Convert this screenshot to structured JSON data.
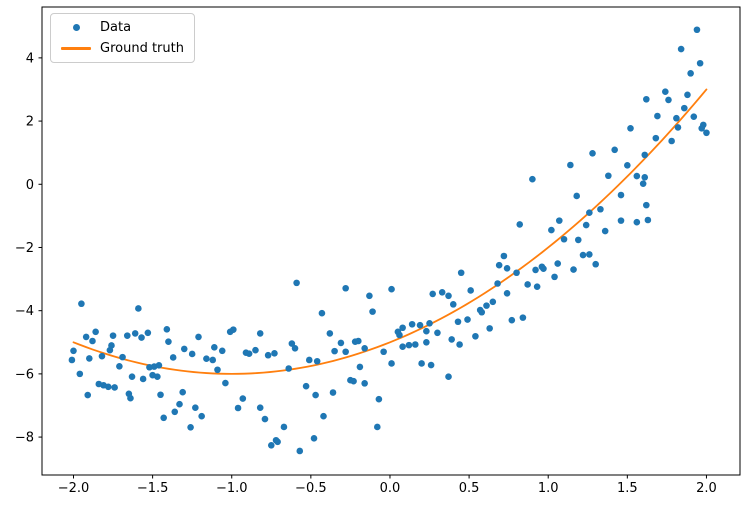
{
  "figure": {
    "background": "#ffffff",
    "spine_color": "#000000",
    "tick_color": "#000000"
  },
  "chart_data": {
    "type": "scatter",
    "title": "",
    "xlabel": "",
    "ylabel": "",
    "grid": false,
    "legend_position": "upper left",
    "xlim": [
      -2.199,
      2.212
    ],
    "ylim": [
      -9.2,
      5.61
    ],
    "x_ticks": [
      -2.0,
      -1.5,
      -1.0,
      -0.5,
      0.0,
      0.5,
      1.0,
      1.5,
      2.0
    ],
    "x_tick_labels": [
      "−2.0",
      "−1.5",
      "−1.0",
      "−0.5",
      "0.0",
      "0.5",
      "1.0",
      "1.5",
      "2.0"
    ],
    "y_ticks": [
      -8,
      -6,
      -4,
      -2,
      0,
      2,
      4
    ],
    "y_tick_labels": [
      "−8",
      "−6",
      "−4",
      "−2",
      "0",
      "2",
      "4"
    ],
    "series": [
      {
        "name": "Data",
        "type": "scatter",
        "color": "#1f77b4",
        "marker_radius": 3.3,
        "points": [
          [
            -1.95,
            -3.78
          ],
          [
            -1.59,
            -3.93
          ],
          [
            -1.92,
            -4.83
          ],
          [
            -1.86,
            -4.67
          ],
          [
            -1.88,
            -4.96
          ],
          [
            -1.75,
            -4.79
          ],
          [
            -1.66,
            -4.79
          ],
          [
            -1.61,
            -4.72
          ],
          [
            -1.57,
            -4.85
          ],
          [
            -1.53,
            -4.7
          ],
          [
            -1.41,
            -4.59
          ],
          [
            -1.4,
            -4.98
          ],
          [
            -2.0,
            -5.27
          ],
          [
            -2.01,
            -5.56
          ],
          [
            -1.9,
            -5.51
          ],
          [
            -1.82,
            -5.44
          ],
          [
            -1.77,
            -5.25
          ],
          [
            -1.76,
            -5.1
          ],
          [
            -1.69,
            -5.47
          ],
          [
            -1.71,
            -5.76
          ],
          [
            -1.63,
            -6.09
          ],
          [
            -1.52,
            -5.79
          ],
          [
            -1.49,
            -5.77
          ],
          [
            -1.46,
            -5.73
          ],
          [
            -1.56,
            -6.16
          ],
          [
            -1.5,
            -6.04
          ],
          [
            -1.47,
            -6.09
          ],
          [
            -1.96,
            -6.0
          ],
          [
            -1.91,
            -6.67
          ],
          [
            -1.84,
            -6.32
          ],
          [
            -1.81,
            -6.36
          ],
          [
            -1.78,
            -6.41
          ],
          [
            -1.74,
            -6.43
          ],
          [
            -1.65,
            -6.63
          ],
          [
            -1.64,
            -6.77
          ],
          [
            -1.45,
            -6.66
          ],
          [
            -1.37,
            -5.48
          ],
          [
            -1.3,
            -5.21
          ],
          [
            -1.25,
            -5.37
          ],
          [
            -1.21,
            -4.83
          ],
          [
            -1.31,
            -6.58
          ],
          [
            -1.33,
            -6.96
          ],
          [
            -1.36,
            -7.2
          ],
          [
            -1.43,
            -7.39
          ],
          [
            -1.23,
            -7.07
          ],
          [
            -1.19,
            -7.34
          ],
          [
            -1.26,
            -7.69
          ],
          [
            -1.16,
            -5.52
          ],
          [
            -1.11,
            -5.16
          ],
          [
            -1.12,
            -5.56
          ],
          [
            -1.09,
            -5.87
          ],
          [
            -1.06,
            -5.27
          ],
          [
            -1.04,
            -6.29
          ],
          [
            -1.01,
            -4.67
          ],
          [
            -0.99,
            -4.6
          ],
          [
            -0.96,
            -7.08
          ],
          [
            -0.59,
            -3.12
          ],
          [
            -0.28,
            -3.29
          ],
          [
            -0.13,
            -3.53
          ],
          [
            0.01,
            -3.32
          ],
          [
            -0.11,
            -4.03
          ],
          [
            -0.43,
            -4.08
          ],
          [
            -0.38,
            -4.72
          ],
          [
            -0.82,
            -4.72
          ],
          [
            -0.73,
            -5.35
          ],
          [
            -0.62,
            -5.04
          ],
          [
            -0.6,
            -5.19
          ],
          [
            -0.91,
            -5.33
          ],
          [
            -0.89,
            -5.36
          ],
          [
            -0.85,
            -5.25
          ],
          [
            -0.77,
            -5.41
          ],
          [
            -0.64,
            -5.83
          ],
          [
            -0.51,
            -5.56
          ],
          [
            -0.46,
            -5.6
          ],
          [
            -0.35,
            -5.28
          ],
          [
            -0.31,
            -5.02
          ],
          [
            -0.28,
            -5.3
          ],
          [
            -0.22,
            -4.98
          ],
          [
            -0.2,
            -4.96
          ],
          [
            -0.16,
            -5.19
          ],
          [
            -0.25,
            -6.2
          ],
          [
            -0.23,
            -6.23
          ],
          [
            -0.19,
            -5.78
          ],
          [
            -0.16,
            -6.3
          ],
          [
            -0.36,
            -6.59
          ],
          [
            -0.47,
            -6.67
          ],
          [
            -0.53,
            -6.39
          ],
          [
            -0.93,
            -6.78
          ],
          [
            -0.82,
            -7.07
          ],
          [
            -0.79,
            -7.43
          ],
          [
            -0.67,
            -7.68
          ],
          [
            -0.72,
            -8.1
          ],
          [
            -0.71,
            -8.15
          ],
          [
            -0.75,
            -8.26
          ],
          [
            -0.48,
            -8.04
          ],
          [
            -0.57,
            -8.44
          ],
          [
            -0.42,
            -7.34
          ],
          [
            -0.08,
            -7.68
          ],
          [
            -0.07,
            -6.8
          ],
          [
            0.12,
            -5.09
          ],
          [
            0.08,
            -5.14
          ],
          [
            -0.04,
            -5.3
          ],
          [
            0.05,
            -4.67
          ],
          [
            0.01,
            -5.67
          ],
          [
            0.37,
            -6.09
          ],
          [
            0.2,
            -5.67
          ],
          [
            0.26,
            -5.72
          ],
          [
            1.14,
            0.61
          ],
          [
            0.9,
            0.16
          ],
          [
            1.18,
            -0.37
          ],
          [
            0.82,
            -1.27
          ],
          [
            1.07,
            -1.15
          ],
          [
            1.02,
            -1.45
          ],
          [
            1.1,
            -1.74
          ],
          [
            1.19,
            -1.76
          ],
          [
            0.72,
            -2.27
          ],
          [
            0.69,
            -2.56
          ],
          [
            0.74,
            -2.66
          ],
          [
            0.8,
            -2.8
          ],
          [
            0.92,
            -2.71
          ],
          [
            0.96,
            -2.61
          ],
          [
            0.97,
            -2.67
          ],
          [
            1.04,
            -2.93
          ],
          [
            1.06,
            -2.51
          ],
          [
            1.16,
            -2.7
          ],
          [
            0.45,
            -2.8
          ],
          [
            0.68,
            -3.14
          ],
          [
            0.87,
            -3.17
          ],
          [
            0.93,
            -3.24
          ],
          [
            0.27,
            -3.47
          ],
          [
            0.33,
            -3.42
          ],
          [
            0.37,
            -3.53
          ],
          [
            0.4,
            -3.8
          ],
          [
            0.51,
            -3.36
          ],
          [
            0.57,
            -3.98
          ],
          [
            0.58,
            -4.05
          ],
          [
            0.61,
            -3.84
          ],
          [
            0.65,
            -3.72
          ],
          [
            0.74,
            -3.45
          ],
          [
            0.14,
            -4.43
          ],
          [
            0.19,
            -4.46
          ],
          [
            0.25,
            -4.4
          ],
          [
            0.23,
            -4.65
          ],
          [
            0.3,
            -4.7
          ],
          [
            0.08,
            -4.54
          ],
          [
            0.06,
            -4.77
          ],
          [
            0.16,
            -5.07
          ],
          [
            0.23,
            -5.0
          ],
          [
            0.39,
            -4.91
          ],
          [
            0.44,
            -5.07
          ],
          [
            0.54,
            -4.81
          ],
          [
            0.43,
            -4.35
          ],
          [
            0.49,
            -4.28
          ],
          [
            0.63,
            -4.56
          ],
          [
            0.77,
            -4.3
          ],
          [
            0.84,
            -4.22
          ],
          [
            1.94,
            4.89
          ],
          [
            1.84,
            4.28
          ],
          [
            1.96,
            3.83
          ],
          [
            1.9,
            3.51
          ],
          [
            1.88,
            2.83
          ],
          [
            1.74,
            2.93
          ],
          [
            1.76,
            2.67
          ],
          [
            1.62,
            2.69
          ],
          [
            1.86,
            2.41
          ],
          [
            1.81,
            2.09
          ],
          [
            1.92,
            2.14
          ],
          [
            1.98,
            1.88
          ],
          [
            1.97,
            1.77
          ],
          [
            2.0,
            1.63
          ],
          [
            1.82,
            1.8
          ],
          [
            1.69,
            2.16
          ],
          [
            1.52,
            1.77
          ],
          [
            1.68,
            1.46
          ],
          [
            1.61,
            0.93
          ],
          [
            1.42,
            1.09
          ],
          [
            1.28,
            0.98
          ],
          [
            1.5,
            0.6
          ],
          [
            1.78,
            1.37
          ],
          [
            1.38,
            0.27
          ],
          [
            1.56,
            0.26
          ],
          [
            1.61,
            0.22
          ],
          [
            1.6,
            0.02
          ],
          [
            1.46,
            -0.34
          ],
          [
            1.62,
            -0.66
          ],
          [
            1.33,
            -0.79
          ],
          [
            1.26,
            -0.9
          ],
          [
            1.46,
            -1.15
          ],
          [
            1.56,
            -1.2
          ],
          [
            1.24,
            -1.29
          ],
          [
            1.36,
            -1.48
          ],
          [
            1.63,
            -1.13
          ],
          [
            1.22,
            -2.24
          ],
          [
            1.26,
            -2.22
          ],
          [
            1.3,
            -2.53
          ]
        ]
      },
      {
        "name": "Ground truth",
        "type": "line",
        "color": "#ff7f0e",
        "line_width": 1.8,
        "formula": "y = x^2 + 2x - 5",
        "poly_coefficients": [
          1,
          2,
          -5
        ],
        "x_range": [
          -2,
          2
        ]
      }
    ]
  }
}
